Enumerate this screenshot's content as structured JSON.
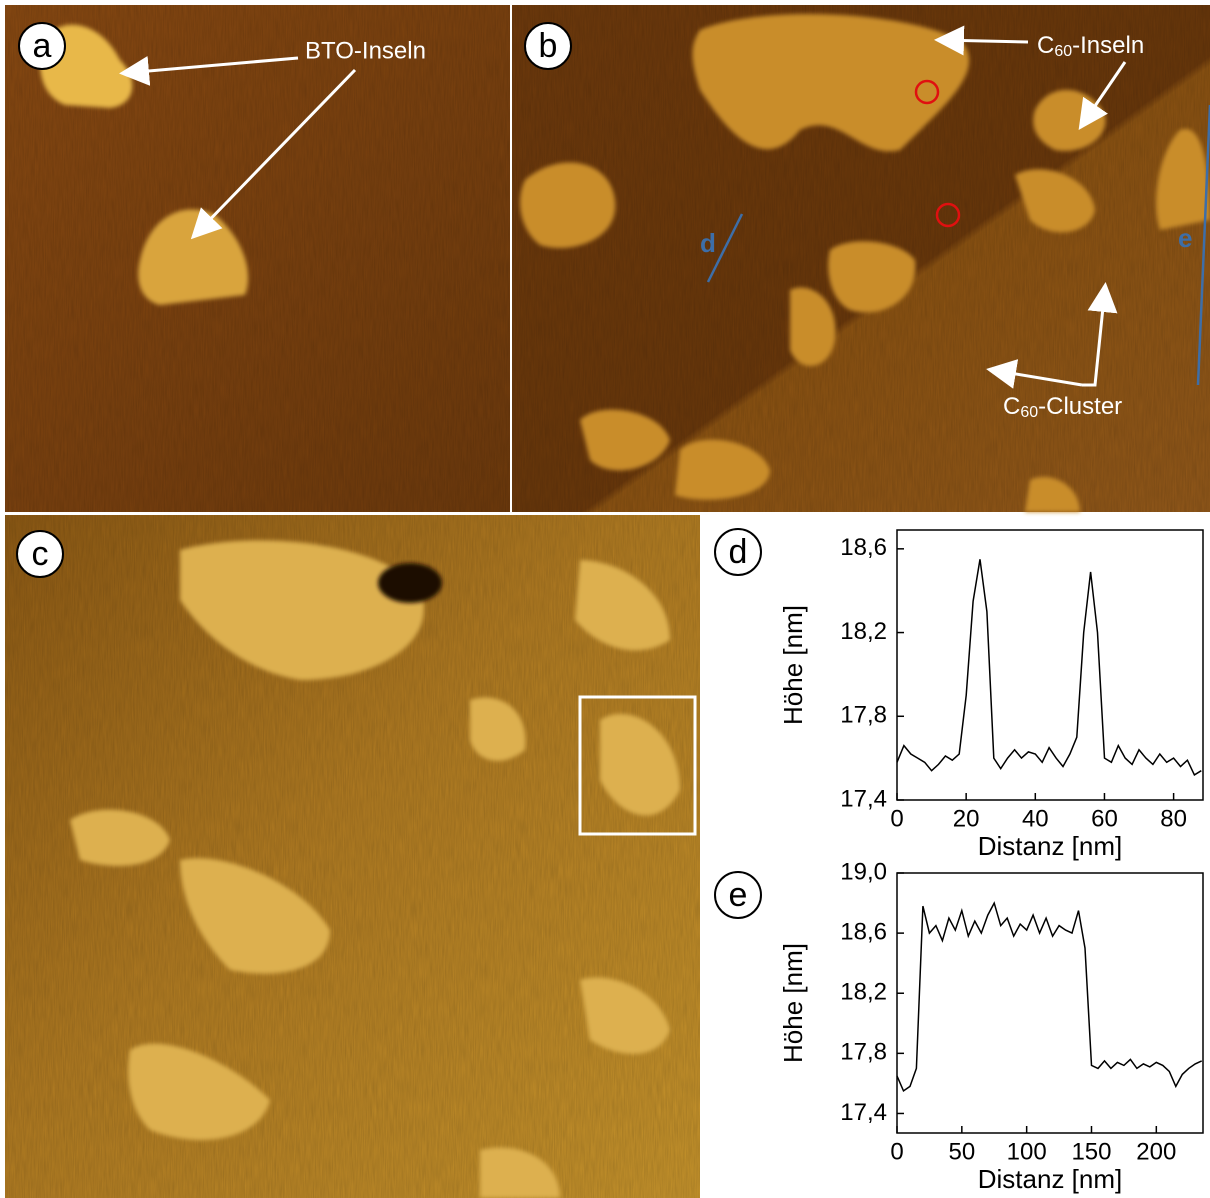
{
  "panels": {
    "a": {
      "label": "a",
      "annotation": "BTO-Inseln"
    },
    "b": {
      "label": "b",
      "islands": {
        "base": "C",
        "sub": "60",
        "rest": "-Inseln"
      },
      "clusters": {
        "base": "C",
        "sub": "60",
        "rest": "-Cluster"
      },
      "profile_d": "d",
      "profile_e": "e"
    },
    "c": {
      "label": "c"
    }
  },
  "chart_data": [
    {
      "type": "line",
      "label": "d",
      "xlabel": "Distanz [nm]",
      "ylabel": "Höhe [nm]",
      "color": "#000000",
      "xlim": [
        0,
        88.5
      ],
      "ylim": [
        17.4,
        18.69
      ],
      "xticks": [
        0,
        20,
        40,
        60,
        80
      ],
      "yticks": [
        {
          "value": 17.4,
          "label": "17,4"
        },
        {
          "value": 17.8,
          "label": "17,8"
        },
        {
          "value": 18.2,
          "label": "18,2"
        },
        {
          "value": 18.6,
          "label": "18,6"
        }
      ],
      "x": [
        0,
        2,
        4,
        6,
        8,
        10,
        12,
        14,
        16,
        18,
        20,
        22,
        24,
        26,
        28,
        30,
        32,
        34,
        36,
        38,
        40,
        42,
        44,
        46,
        48,
        50,
        52,
        54,
        56,
        58,
        60,
        62,
        64,
        66,
        68,
        70,
        72,
        74,
        76,
        78,
        80,
        82,
        84,
        86,
        88
      ],
      "values": [
        17.58,
        17.66,
        17.62,
        17.6,
        17.58,
        17.54,
        17.57,
        17.61,
        17.59,
        17.62,
        17.9,
        18.35,
        18.55,
        18.3,
        17.6,
        17.55,
        17.6,
        17.64,
        17.6,
        17.63,
        17.62,
        17.58,
        17.65,
        17.6,
        17.56,
        17.62,
        17.7,
        18.2,
        18.49,
        18.2,
        17.6,
        17.58,
        17.66,
        17.6,
        17.57,
        17.64,
        17.6,
        17.57,
        17.62,
        17.58,
        17.6,
        17.56,
        17.59,
        17.52,
        17.54
      ]
    },
    {
      "type": "line",
      "label": "e",
      "xlabel": "Distanz [nm]",
      "ylabel": "Höhe [nm]",
      "color": "#000000",
      "xlim": [
        0,
        236
      ],
      "ylim": [
        17.27,
        19.0
      ],
      "xticks": [
        0,
        50,
        100,
        150,
        200
      ],
      "yticks": [
        {
          "value": 17.4,
          "label": "17,4"
        },
        {
          "value": 17.8,
          "label": "17,8"
        },
        {
          "value": 18.2,
          "label": "18,2"
        },
        {
          "value": 18.6,
          "label": "18,6"
        },
        {
          "value": 19.0,
          "label": "19,0"
        }
      ],
      "x": [
        0,
        5,
        10,
        15,
        20,
        25,
        30,
        35,
        40,
        45,
        50,
        55,
        60,
        65,
        70,
        75,
        80,
        85,
        90,
        95,
        100,
        105,
        110,
        115,
        120,
        125,
        130,
        135,
        140,
        145,
        150,
        155,
        160,
        165,
        170,
        175,
        180,
        185,
        190,
        195,
        200,
        205,
        210,
        215,
        220,
        225,
        230,
        235
      ],
      "values": [
        17.65,
        17.55,
        17.58,
        17.7,
        18.78,
        18.6,
        18.65,
        18.55,
        18.7,
        18.62,
        18.75,
        18.58,
        18.68,
        18.6,
        18.72,
        18.8,
        18.65,
        18.7,
        18.58,
        18.66,
        18.62,
        18.72,
        18.6,
        18.7,
        18.58,
        18.65,
        18.62,
        18.6,
        18.75,
        18.5,
        17.72,
        17.7,
        17.75,
        17.7,
        17.74,
        17.72,
        17.76,
        17.7,
        17.73,
        17.71,
        17.74,
        17.72,
        17.68,
        17.58,
        17.66,
        17.7,
        17.73,
        17.75
      ]
    }
  ]
}
